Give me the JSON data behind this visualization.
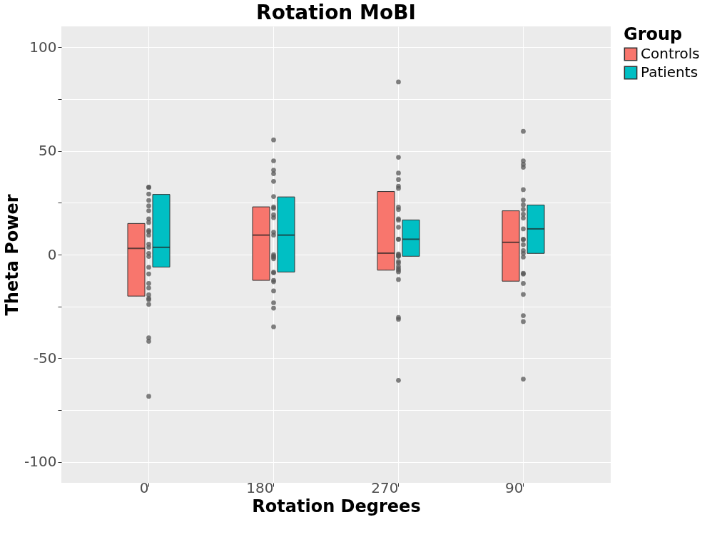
{
  "chart_data": {
    "type": "box",
    "title": "Rotation MoBI",
    "xlabel": "Rotation Degrees",
    "ylabel": "Theta Power",
    "legend_title": "Group",
    "legend": "right",
    "grid": true,
    "categories": [
      "0",
      "180",
      "270",
      "90"
    ],
    "ylim": [
      -110,
      110
    ],
    "yticks": [
      -100,
      {
        "value": -75,
        "label": null
      },
      -50,
      {
        "value": -25,
        "label": null
      },
      0,
      {
        "value": 25,
        "label": null
      },
      50,
      {
        "value": 75,
        "label": null
      },
      100
    ],
    "series": [
      {
        "name": "Controls",
        "color": "#f8766d",
        "boxes": [
          {
            "low": -20,
            "q1": -20,
            "median": 3,
            "q3": 15,
            "high": 15
          },
          {
            "low": -12.4,
            "q1": -12.4,
            "median": 9.4,
            "q3": 23,
            "high": 23
          },
          {
            "low": -7.5,
            "q1": -7.5,
            "median": 0.7,
            "q3": 30.4,
            "high": 30.4
          },
          {
            "low": -12.8,
            "q1": -12.8,
            "median": 5.9,
            "q3": 21.1,
            "high": 21.1
          }
        ]
      },
      {
        "name": "Patients",
        "color": "#00bfc4",
        "boxes": [
          {
            "low": -6,
            "q1": -6,
            "median": 3.5,
            "q3": 29,
            "high": 29
          },
          {
            "low": -8.4,
            "q1": -8.4,
            "median": 9.4,
            "q3": 27.8,
            "high": 27.8
          },
          {
            "low": -0.8,
            "q1": -0.8,
            "median": 7.4,
            "q3": 16.7,
            "high": 16.7
          },
          {
            "low": 0.6,
            "q1": 0.6,
            "median": 12.4,
            "q3": 23.9,
            "high": 23.9
          }
        ]
      },
      {
        "type": "scatter",
        "color": "#555555",
        "x": [
          "0",
          "0",
          "0",
          "0",
          "0",
          "0",
          "0",
          "0",
          "0",
          "0",
          "0",
          "0",
          "0",
          "0",
          "0",
          "0",
          "0",
          "0",
          "0",
          "0",
          "0",
          "0",
          "0",
          "0",
          "0",
          "0",
          "180",
          "180",
          "180",
          "180",
          "180",
          "180",
          "180",
          "180",
          "180",
          "180",
          "180",
          "180",
          "180",
          "180",
          "180",
          "180",
          "180",
          "180",
          "180",
          "180",
          "180",
          "180",
          "180",
          "180",
          "270",
          "270",
          "270",
          "270",
          "270",
          "270",
          "270",
          "270",
          "270",
          "270",
          "270",
          "270",
          "270",
          "270",
          "270",
          "270",
          "270",
          "270",
          "270",
          "270",
          "270",
          "270",
          "270",
          "270",
          "270",
          "270",
          "270",
          "90",
          "90",
          "90",
          "90",
          "90",
          "90",
          "90",
          "90",
          "90",
          "90",
          "90",
          "90",
          "90",
          "90",
          "90",
          "90",
          "90",
          "90",
          "90",
          "90",
          "90",
          "90",
          "90",
          "90"
        ],
        "values": [
          32.4,
          32.5,
          29.2,
          26.1,
          23.5,
          21.1,
          17.2,
          15.5,
          11.6,
          11,
          9.4,
          5,
          3.5,
          0.6,
          -0.9,
          -6.1,
          -9.3,
          -13.9,
          -16.1,
          -19.4,
          -21.1,
          -21.7,
          -24,
          -40.1,
          -41.8,
          -68.3,
          55.3,
          45.2,
          40.7,
          39,
          35.3,
          28,
          23,
          22.3,
          19.2,
          17.8,
          10.8,
          9.4,
          0,
          -0.7,
          -1.2,
          -2,
          -8.5,
          -8.8,
          -12.4,
          -13.1,
          -17.5,
          -23.2,
          -25.8,
          -34.8,
          83.2,
          46.9,
          39.3,
          36.2,
          33,
          31.9,
          22.9,
          21.7,
          17.2,
          16.6,
          13.2,
          7.4,
          7.4,
          0.3,
          -0.2,
          -0.8,
          -0.8,
          -3.3,
          -4.1,
          -5.7,
          -6.7,
          -7.5,
          -8.3,
          -12,
          -30.3,
          -31.2,
          -60.6,
          59.4,
          45.2,
          43.5,
          42.1,
          31.3,
          26.3,
          24,
          21.8,
          19.5,
          17.6,
          12.4,
          7.4,
          7.2,
          4.8,
          1.9,
          0.6,
          -1.2,
          -9,
          -9.4,
          -13.9,
          -19.2,
          -29.4,
          -32.3,
          -60
        ]
      }
    ]
  }
}
